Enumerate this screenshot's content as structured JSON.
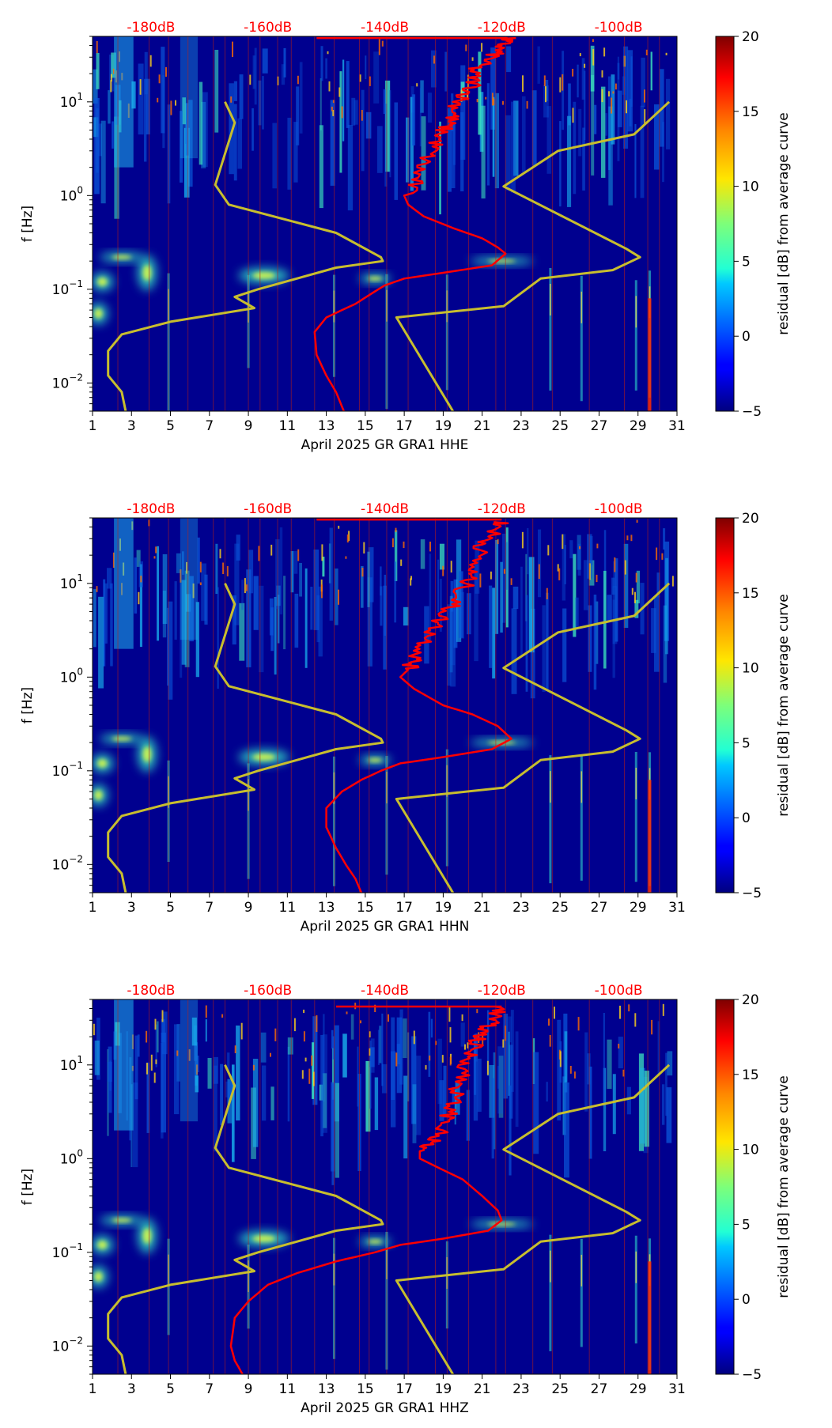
{
  "chart_data": [
    {
      "type": "heatmap",
      "channel": "HHE",
      "xlabel": "April 2025 GR GRA1  HHE",
      "ylabel": "f [Hz]",
      "colorbar_label": "residual [dB] from average curve",
      "colorbar_ticks": [
        "20",
        "15",
        "10",
        "5",
        "0",
        "−5"
      ],
      "colorbar_range": [
        -5,
        20
      ],
      "x_range": [
        1,
        31
      ],
      "x_ticks": [
        "1",
        "3",
        "5",
        "7",
        "9",
        "11",
        "13",
        "15",
        "17",
        "19",
        "21",
        "23",
        "25",
        "27",
        "29",
        "31"
      ],
      "y_range_hz": [
        0.005,
        50
      ],
      "y_ticks": [
        {
          "label": "10",
          "exp": "1",
          "value": 10
        },
        {
          "label": "10",
          "exp": "0",
          "value": 1
        },
        {
          "label": "10",
          "exp": "−1",
          "value": 0.1
        },
        {
          "label": "10",
          "exp": "−2",
          "value": 0.01
        }
      ],
      "db_scale_labels": [
        "-180dB",
        "-160dB",
        "-140dB",
        "-120dB",
        "-100dB"
      ],
      "db_scale_days": [
        4,
        10,
        16,
        22,
        28
      ],
      "noise_model_low": [
        [
          7.8,
          10
        ],
        [
          8.3,
          6
        ],
        [
          7.3,
          1.3
        ],
        [
          8,
          0.8
        ],
        [
          13.5,
          0.4
        ],
        [
          15.8,
          0.22
        ],
        [
          15.9,
          0.2
        ],
        [
          13.5,
          0.17
        ],
        [
          9.5,
          0.1
        ],
        [
          8.3,
          0.083
        ],
        [
          9.3,
          0.063
        ],
        [
          5,
          0.045
        ],
        [
          2.5,
          0.033
        ],
        [
          1.8,
          0.022
        ],
        [
          1.8,
          0.012
        ],
        [
          2.5,
          0.008
        ],
        [
          2.7,
          0.005
        ]
      ],
      "noise_model_high": [
        [
          30.6,
          10
        ],
        [
          28.8,
          4.5
        ],
        [
          24.9,
          3
        ],
        [
          22.1,
          1.25
        ],
        [
          28.4,
          0.27
        ],
        [
          29.1,
          0.22
        ],
        [
          27.7,
          0.16
        ],
        [
          24,
          0.13
        ],
        [
          22.1,
          0.066
        ],
        [
          16.6,
          0.05
        ],
        [
          19.5,
          0.005
        ]
      ],
      "mean_curve": [
        [
          22.3,
          48
        ],
        [
          22,
          40
        ],
        [
          21.5,
          30
        ],
        [
          20.5,
          22
        ],
        [
          20.6,
          15
        ],
        [
          19.8,
          10
        ],
        [
          19.5,
          7
        ],
        [
          19,
          5
        ],
        [
          18.5,
          3.2
        ],
        [
          17.8,
          2
        ],
        [
          17.5,
          1.3
        ],
        [
          17,
          1
        ],
        [
          17.2,
          0.8
        ],
        [
          18,
          0.6
        ],
        [
          19.5,
          0.45
        ],
        [
          21,
          0.35
        ],
        [
          21.8,
          0.28
        ],
        [
          22.2,
          0.24
        ],
        [
          21.5,
          0.18
        ],
        [
          19,
          0.15
        ],
        [
          17,
          0.13
        ],
        [
          16,
          0.11
        ],
        [
          15.5,
          0.095
        ],
        [
          14.5,
          0.07
        ],
        [
          13,
          0.05
        ],
        [
          12.4,
          0.035
        ],
        [
          12.5,
          0.02
        ],
        [
          13,
          0.012
        ],
        [
          13.5,
          0.008
        ],
        [
          13.9,
          0.005
        ]
      ],
      "mean_curve_top": {
        "from_day": 12.5,
        "to_day": 22.3,
        "hz": 48
      }
    },
    {
      "type": "heatmap",
      "channel": "HHN",
      "xlabel": "April 2025 GR GRA1  HHN",
      "ylabel": "f [Hz]",
      "colorbar_label": "residual [dB] from average curve",
      "colorbar_ticks": [
        "20",
        "15",
        "10",
        "5",
        "0",
        "−5"
      ],
      "colorbar_range": [
        -5,
        20
      ],
      "x_range": [
        1,
        31
      ],
      "x_ticks": [
        "1",
        "3",
        "5",
        "7",
        "9",
        "11",
        "13",
        "15",
        "17",
        "19",
        "21",
        "23",
        "25",
        "27",
        "29",
        "31"
      ],
      "y_range_hz": [
        0.005,
        50
      ],
      "y_ticks": [
        {
          "label": "10",
          "exp": "1",
          "value": 10
        },
        {
          "label": "10",
          "exp": "0",
          "value": 1
        },
        {
          "label": "10",
          "exp": "−1",
          "value": 0.1
        },
        {
          "label": "10",
          "exp": "−2",
          "value": 0.01
        }
      ],
      "db_scale_labels": [
        "-180dB",
        "-160dB",
        "-140dB",
        "-120dB",
        "-100dB"
      ],
      "db_scale_days": [
        4,
        10,
        16,
        22,
        28
      ],
      "noise_model_low": [
        [
          7.8,
          10
        ],
        [
          8.3,
          6
        ],
        [
          7.3,
          1.3
        ],
        [
          8,
          0.8
        ],
        [
          13.5,
          0.4
        ],
        [
          15.8,
          0.22
        ],
        [
          15.9,
          0.2
        ],
        [
          13.5,
          0.17
        ],
        [
          9.5,
          0.1
        ],
        [
          8.3,
          0.083
        ],
        [
          9.3,
          0.063
        ],
        [
          5,
          0.045
        ],
        [
          2.5,
          0.033
        ],
        [
          1.8,
          0.022
        ],
        [
          1.8,
          0.012
        ],
        [
          2.5,
          0.008
        ],
        [
          2.7,
          0.005
        ]
      ],
      "noise_model_high": [
        [
          30.6,
          10
        ],
        [
          28.8,
          4.5
        ],
        [
          24.9,
          3
        ],
        [
          22.1,
          1.25
        ],
        [
          28.4,
          0.27
        ],
        [
          29.1,
          0.22
        ],
        [
          27.7,
          0.16
        ],
        [
          24,
          0.13
        ],
        [
          22.1,
          0.066
        ],
        [
          16.6,
          0.05
        ],
        [
          19.5,
          0.005
        ]
      ],
      "mean_curve": [
        [
          22,
          45
        ],
        [
          21.6,
          35
        ],
        [
          21,
          25
        ],
        [
          20.5,
          15
        ],
        [
          20.2,
          10
        ],
        [
          19.5,
          6
        ],
        [
          18.8,
          4
        ],
        [
          18.2,
          2.5
        ],
        [
          17.6,
          1.6
        ],
        [
          17.2,
          1.2
        ],
        [
          16.8,
          1
        ],
        [
          17.5,
          0.75
        ],
        [
          19,
          0.5
        ],
        [
          20.5,
          0.4
        ],
        [
          21.8,
          0.3
        ],
        [
          22.5,
          0.22
        ],
        [
          21.5,
          0.17
        ],
        [
          19,
          0.14
        ],
        [
          16.8,
          0.12
        ],
        [
          15.8,
          0.1
        ],
        [
          14.8,
          0.08
        ],
        [
          13.8,
          0.06
        ],
        [
          13,
          0.04
        ],
        [
          13,
          0.025
        ],
        [
          13.5,
          0.015
        ],
        [
          14,
          0.01
        ],
        [
          14.5,
          0.007
        ],
        [
          14.8,
          0.005
        ]
      ],
      "mean_curve_top": {
        "from_day": 12.5,
        "to_day": 22,
        "hz": 48
      }
    },
    {
      "type": "heatmap",
      "channel": "HHZ",
      "xlabel": "April 2025 GR GRA1  HHZ",
      "ylabel": "f [Hz]",
      "colorbar_label": "residual [dB] from average curve",
      "colorbar_ticks": [
        "20",
        "15",
        "10",
        "5",
        "0",
        "−5"
      ],
      "colorbar_range": [
        -5,
        20
      ],
      "x_range": [
        1,
        31
      ],
      "x_ticks": [
        "1",
        "3",
        "5",
        "7",
        "9",
        "11",
        "13",
        "15",
        "17",
        "19",
        "21",
        "23",
        "25",
        "27",
        "29",
        "31"
      ],
      "y_range_hz": [
        0.005,
        50
      ],
      "y_ticks": [
        {
          "label": "10",
          "exp": "1",
          "value": 10
        },
        {
          "label": "10",
          "exp": "0",
          "value": 1
        },
        {
          "label": "10",
          "exp": "−1",
          "value": 0.1
        },
        {
          "label": "10",
          "exp": "−2",
          "value": 0.01
        }
      ],
      "db_scale_labels": [
        "-180dB",
        "-160dB",
        "-140dB",
        "-120dB",
        "-100dB"
      ],
      "db_scale_days": [
        4,
        10,
        16,
        22,
        28
      ],
      "noise_model_low": [
        [
          7.8,
          10
        ],
        [
          8.3,
          6
        ],
        [
          7.3,
          1.3
        ],
        [
          8,
          0.8
        ],
        [
          13.5,
          0.4
        ],
        [
          15.8,
          0.22
        ],
        [
          15.9,
          0.2
        ],
        [
          13.5,
          0.17
        ],
        [
          9.5,
          0.1
        ],
        [
          8.3,
          0.083
        ],
        [
          9.3,
          0.063
        ],
        [
          5,
          0.045
        ],
        [
          2.5,
          0.033
        ],
        [
          1.8,
          0.022
        ],
        [
          1.8,
          0.012
        ],
        [
          2.5,
          0.008
        ],
        [
          2.7,
          0.005
        ]
      ],
      "noise_model_high": [
        [
          30.6,
          10
        ],
        [
          28.8,
          4.5
        ],
        [
          24.9,
          3
        ],
        [
          22.1,
          1.25
        ],
        [
          28.4,
          0.27
        ],
        [
          29.1,
          0.22
        ],
        [
          27.7,
          0.16
        ],
        [
          24,
          0.13
        ],
        [
          22.1,
          0.066
        ],
        [
          16.6,
          0.05
        ],
        [
          19.5,
          0.005
        ]
      ],
      "mean_curve": [
        [
          22,
          42
        ],
        [
          21.5,
          30
        ],
        [
          21,
          22
        ],
        [
          20.5,
          15
        ],
        [
          20.2,
          10
        ],
        [
          19.8,
          6
        ],
        [
          19.5,
          4
        ],
        [
          19.2,
          2.5
        ],
        [
          18.5,
          1.6
        ],
        [
          17.8,
          1.2
        ],
        [
          17.8,
          1
        ],
        [
          18.5,
          0.85
        ],
        [
          20,
          0.6
        ],
        [
          21,
          0.4
        ],
        [
          21.8,
          0.28
        ],
        [
          22,
          0.22
        ],
        [
          21.3,
          0.17
        ],
        [
          19,
          0.14
        ],
        [
          16.8,
          0.12
        ],
        [
          15.5,
          0.1
        ],
        [
          13.5,
          0.08
        ],
        [
          11.5,
          0.06
        ],
        [
          10,
          0.045
        ],
        [
          9,
          0.03
        ],
        [
          8.3,
          0.02
        ],
        [
          8.1,
          0.01
        ],
        [
          8.3,
          0.007
        ],
        [
          8.7,
          0.005
        ]
      ],
      "mean_curve_top": {
        "from_day": 13.5,
        "to_day": 22,
        "hz": 42
      }
    }
  ]
}
